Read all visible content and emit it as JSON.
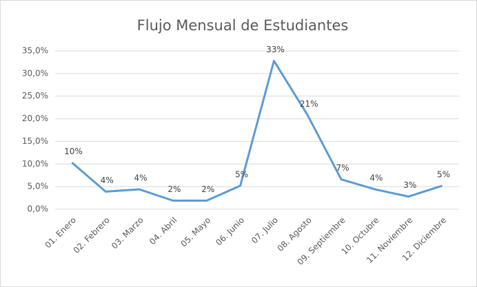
{
  "chart_data": {
    "type": "line",
    "title": "Flujo Mensual de Estudiantes",
    "categories": [
      "01. Enero",
      "02. Febrero",
      "03. Marzo",
      "04. Abril",
      "05. Mayo",
      "06. Junio",
      "07. Julio",
      "08. Agosto",
      "09. Septiembre",
      "10. Octubre",
      "11. Noviembre",
      "12. Diciembre"
    ],
    "series": [
      {
        "name": "Flujo",
        "color": "#5b9bd5",
        "values": [
          10.3,
          3.9,
          4.4,
          1.9,
          1.9,
          5.2,
          32.8,
          20.8,
          6.6,
          4.4,
          2.8,
          5.2
        ],
        "value_labels": [
          "10%",
          "4%",
          "4%",
          "2%",
          "2%",
          "5%",
          "33%",
          "21%",
          "7%",
          "4%",
          "3%",
          "5%"
        ]
      }
    ],
    "ylim": [
      0,
      35
    ],
    "yticks": [
      {
        "value": 0,
        "label": "0,0%"
      },
      {
        "value": 5,
        "label": "5,0%"
      },
      {
        "value": 10,
        "label": "10,0%"
      },
      {
        "value": 15,
        "label": "15,0%"
      },
      {
        "value": 20,
        "label": "20,0%"
      },
      {
        "value": 25,
        "label": "25,0%"
      },
      {
        "value": 30,
        "label": "30,0%"
      },
      {
        "value": 35,
        "label": "35,0%"
      }
    ],
    "grid": true
  }
}
